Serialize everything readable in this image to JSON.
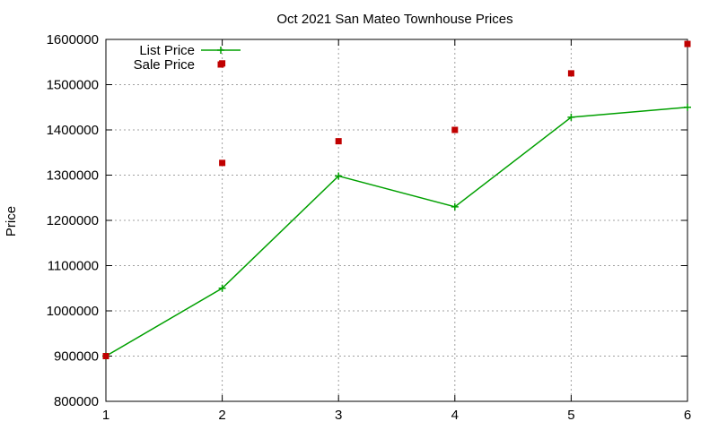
{
  "chart_data": {
    "type": "line",
    "title": "Oct 2021 San Mateo Townhouse Prices",
    "xlabel": "",
    "ylabel": "Price",
    "xlim": [
      1,
      6
    ],
    "ylim": [
      800000,
      1600000
    ],
    "x_ticks": [
      1,
      2,
      3,
      4,
      5,
      6
    ],
    "y_ticks": [
      800000,
      900000,
      1000000,
      1100000,
      1200000,
      1300000,
      1400000,
      1500000,
      1600000
    ],
    "grid": true,
    "legend_position": "top-left",
    "series": [
      {
        "name": "List Price",
        "style": "linespoints",
        "color": "#00a000",
        "points": [
          [
            1,
            900000
          ],
          [
            2,
            1050000
          ],
          [
            3,
            1298000
          ],
          [
            4,
            1230000
          ],
          [
            5,
            1428000
          ],
          [
            6,
            1450000
          ]
        ]
      },
      {
        "name": "Sale Price",
        "style": "points",
        "color": "#c00000",
        "points": [
          [
            1,
            900000
          ],
          [
            2,
            1327000
          ],
          [
            2,
            1547000
          ],
          [
            3,
            1375000
          ],
          [
            4,
            1400000
          ],
          [
            5,
            1525000
          ],
          [
            6,
            1590000
          ]
        ]
      }
    ]
  }
}
